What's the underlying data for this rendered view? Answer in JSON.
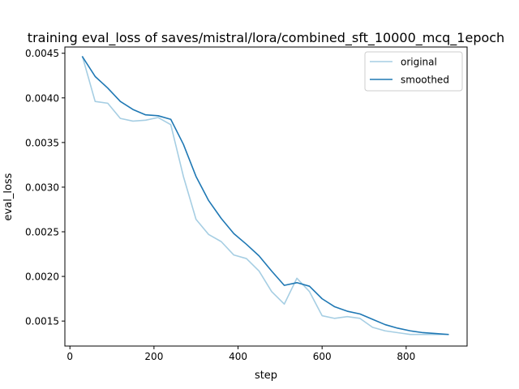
{
  "chart_data": {
    "type": "line",
    "title": "training eval_loss of saves/mistral/lora/combined_sft_10000_mcq_1epoch",
    "xlabel": "step",
    "ylabel": "eval_loss",
    "xlim": [
      -12,
      945
    ],
    "ylim": [
      0.00122,
      0.00457
    ],
    "xticks": [
      0,
      200,
      400,
      600,
      800
    ],
    "yticks": [
      0.0015,
      0.002,
      0.0025,
      0.003,
      0.0035,
      0.004,
      0.0045
    ],
    "xtick_labels": [
      "0",
      "200",
      "400",
      "600",
      "800"
    ],
    "ytick_labels": [
      "0.0015",
      "0.0020",
      "0.0025",
      "0.0030",
      "0.0035",
      "0.0040",
      "0.0045"
    ],
    "grid": false,
    "legend_position": "top-right",
    "series": [
      {
        "name": "original",
        "color": "#a6cee3",
        "x": [
          30,
          60,
          90,
          120,
          150,
          180,
          210,
          240,
          270,
          300,
          330,
          360,
          390,
          420,
          450,
          480,
          510,
          540,
          570,
          600,
          630,
          660,
          690,
          720,
          750,
          780,
          810,
          840,
          870,
          900
        ],
        "y": [
          0.00446,
          0.00396,
          0.00394,
          0.00377,
          0.00374,
          0.00375,
          0.00378,
          0.0037,
          0.00312,
          0.00264,
          0.00247,
          0.00239,
          0.00224,
          0.0022,
          0.00206,
          0.00183,
          0.00169,
          0.00198,
          0.00183,
          0.00156,
          0.00153,
          0.00155,
          0.00153,
          0.00143,
          0.00139,
          0.00137,
          0.00135,
          0.00135,
          0.00135,
          0.00135
        ]
      },
      {
        "name": "smoothed",
        "color": "#1f78b4",
        "x": [
          30,
          60,
          90,
          120,
          150,
          180,
          210,
          240,
          270,
          300,
          330,
          360,
          390,
          420,
          450,
          480,
          510,
          540,
          570,
          600,
          630,
          660,
          690,
          720,
          750,
          780,
          810,
          840,
          870,
          900
        ],
        "y": [
          0.00446,
          0.00424,
          0.00411,
          0.00396,
          0.00387,
          0.00381,
          0.0038,
          0.00376,
          0.00348,
          0.00312,
          0.00285,
          0.00265,
          0.00248,
          0.00236,
          0.00223,
          0.00206,
          0.0019,
          0.00193,
          0.00189,
          0.00175,
          0.00166,
          0.00161,
          0.00158,
          0.00152,
          0.00146,
          0.00142,
          0.00139,
          0.00137,
          0.00136,
          0.00135
        ]
      }
    ]
  }
}
